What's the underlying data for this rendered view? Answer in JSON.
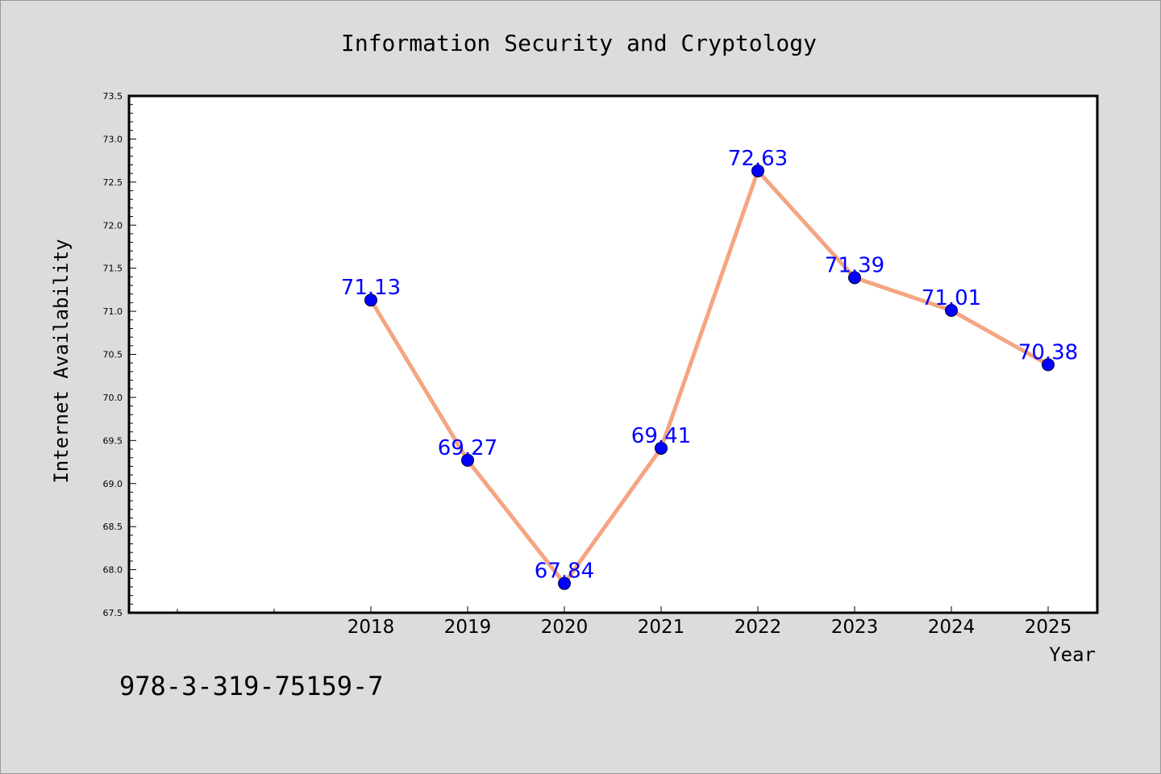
{
  "chart_data": {
    "type": "line",
    "title": "Information Security and Cryptology",
    "xlabel": "Year",
    "ylabel": "Internet Availability",
    "categories": [
      "2018",
      "2019",
      "2020",
      "2021",
      "2022",
      "2023",
      "2024",
      "2025"
    ],
    "series": [
      {
        "values": [
          71.13,
          69.27,
          67.84,
          69.41,
          72.63,
          71.39,
          71.01,
          70.38
        ]
      }
    ],
    "data_labels": [
      "71.13",
      "69.27",
      "67.84",
      "69.41",
      "72.63",
      "71.39",
      "71.01",
      "70.38"
    ],
    "ylim": [
      67.5,
      73.5
    ],
    "y_ticks": [
      "67.5",
      "68.0",
      "68.5",
      "69.0",
      "69.5",
      "70.0",
      "70.5",
      "71.0",
      "71.5",
      "72.0",
      "72.5",
      "73.0",
      "73.5"
    ],
    "grid": false,
    "legend": "none",
    "colors": {
      "line": "#f4a582",
      "marker": "#0000ff",
      "label": "#0000ff",
      "background": "#dcdcdc",
      "plot_area": "#ffffff"
    }
  },
  "footer": {
    "code": "978-3-319-75159-7"
  }
}
